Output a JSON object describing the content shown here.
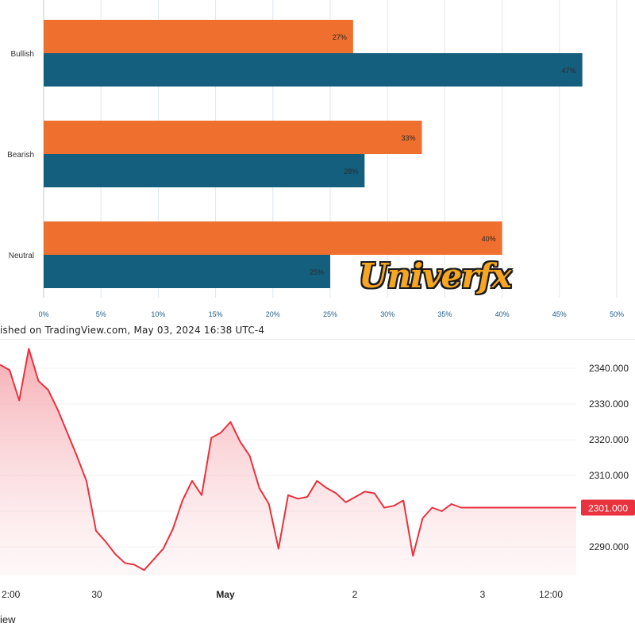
{
  "chart_data": [
    {
      "type": "bar",
      "orientation": "horizontal",
      "categories": [
        "Bullish",
        "Bearish",
        "Neutral"
      ],
      "series": [
        {
          "values": [
            27,
            33,
            40
          ],
          "color": "#ee6f2e",
          "labels": [
            "27%",
            "33%",
            "40%"
          ]
        },
        {
          "values": [
            47,
            28,
            25
          ],
          "color": "#155f7e",
          "labels": [
            "47%",
            "28%",
            "25%"
          ]
        }
      ],
      "xlim": [
        0,
        50
      ],
      "xticks": [
        0,
        5,
        10,
        15,
        20,
        25,
        30,
        35,
        40,
        45,
        50
      ],
      "xtick_labels": [
        "0%",
        "5%",
        "10%",
        "15%",
        "20%",
        "25%",
        "30%",
        "35%",
        "40%",
        "45%",
        "50%"
      ],
      "grid": true
    },
    {
      "type": "area",
      "title": "",
      "line_color": "#e8323e",
      "fill_color": "#fbd7da",
      "ylim": [
        2282,
        2348
      ],
      "y_ticks": [
        2290,
        2300,
        2310,
        2320,
        2330,
        2340
      ],
      "y_tick_labels": [
        "2290.000",
        "2300.000",
        "2310.000",
        "2320.000",
        "2330.000",
        "2340.000"
      ],
      "x_tick_labels": [
        "2:00",
        "30",
        "May",
        "2",
        "3",
        "12:00"
      ],
      "current_price": 2301,
      "current_price_label": "2301.000",
      "x": [
        0,
        2,
        4,
        6,
        8,
        10,
        12,
        14,
        16,
        18,
        20,
        22,
        24,
        26,
        28,
        30,
        32,
        34,
        36,
        38,
        40,
        42,
        44,
        46,
        48,
        50,
        52,
        54,
        56,
        58,
        60,
        62,
        64,
        66,
        68,
        70,
        72,
        74,
        76,
        78,
        80,
        82,
        84,
        86,
        88,
        90,
        92,
        94,
        96,
        98,
        100,
        102,
        104,
        106,
        108,
        110,
        112,
        114,
        116,
        118,
        120
      ],
      "y": [
        2341.0,
        2339.5,
        2331.0,
        2345.5,
        2336.5,
        2334.0,
        2328.5,
        2322.0,
        2315.5,
        2308.5,
        2294.5,
        2291.5,
        2288.0,
        2285.5,
        2285.0,
        2283.5,
        2286.5,
        2289.5,
        2295.0,
        2303.0,
        2308.5,
        2304.5,
        2320.5,
        2322.0,
        2325.0,
        2319.5,
        2315.5,
        2306.5,
        2302.0,
        2289.5,
        2304.5,
        2303.5,
        2304.0,
        2308.5,
        2306.5,
        2305.0,
        2302.5,
        2304.0,
        2305.5,
        2305.0,
        2301.0,
        2301.5,
        2303.0,
        2287.5,
        2298.0,
        2301.0,
        2300.0,
        2302.0,
        2301.0,
        2301.0,
        2301.0,
        2301.0,
        2301.0,
        2301.0,
        2301.0,
        2301.0,
        2301.0,
        2301.0,
        2301.0,
        2301.0,
        2301.0
      ]
    }
  ],
  "published_text": "ished on TradingView.com, May 03, 2024 16:38 UTC-4",
  "footer_text": "iew",
  "watermark_text": "Univerfx"
}
